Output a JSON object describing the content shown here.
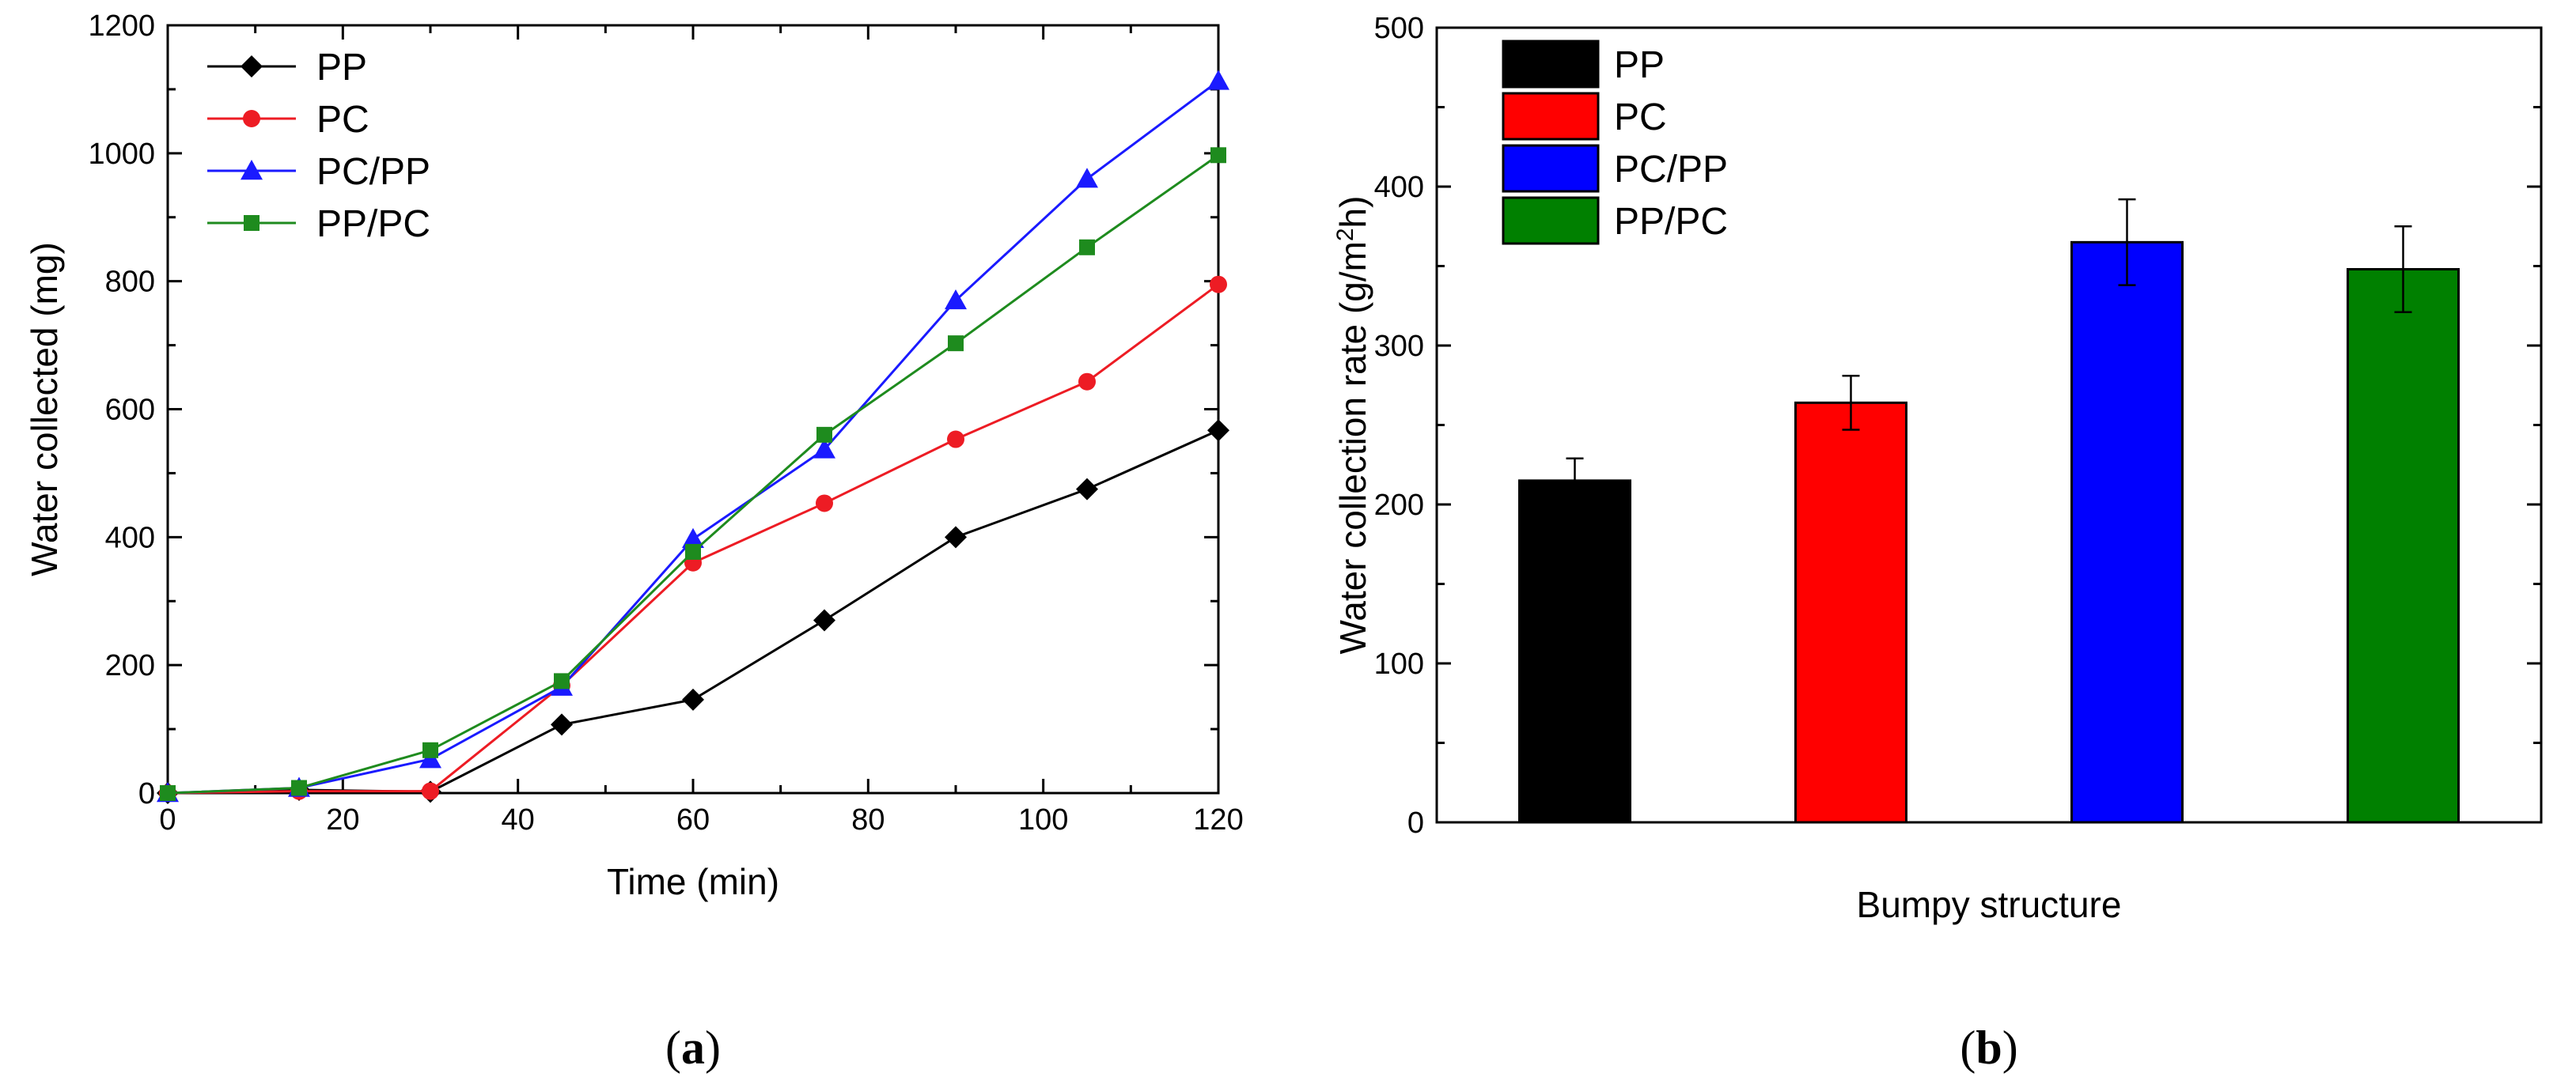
{
  "chart_data": [
    {
      "type": "line",
      "panel_label": "(a)",
      "panel_letter": "a",
      "xlabel": "Time (min)",
      "ylabel": "Water collected (mg)",
      "xlim": [
        0,
        120
      ],
      "ylim": [
        0,
        1200
      ],
      "xticks": [
        "0",
        "20",
        "40",
        "60",
        "80",
        "100",
        "120"
      ],
      "yticks": [
        "0",
        "200",
        "400",
        "600",
        "800",
        "1000",
        "1200"
      ],
      "x": [
        0,
        15,
        30,
        45,
        60,
        75,
        90,
        105,
        120
      ],
      "legend_position": "top-left",
      "series": [
        {
          "name": "PP",
          "color": "#000000",
          "marker": "diamond",
          "values": [
            0,
            5,
            2,
            107,
            146,
            270,
            400,
            475,
            567
          ]
        },
        {
          "name": "PC",
          "color": "#ed1c24",
          "marker": "circle",
          "values": [
            0,
            3,
            3,
            168,
            360,
            453,
            553,
            643,
            795
          ]
        },
        {
          "name": "PC/PP",
          "color": "#1a1aff",
          "marker": "triangle",
          "values": [
            0,
            8,
            53,
            166,
            397,
            537,
            770,
            960,
            1113
          ]
        },
        {
          "name": "PP/PC",
          "color": "#1e8b1e",
          "marker": "square",
          "values": [
            0,
            8,
            67,
            175,
            377,
            560,
            703,
            853,
            997
          ]
        }
      ]
    },
    {
      "type": "bar",
      "panel_label": "(b)",
      "panel_letter": "b",
      "xlabel": "Bumpy structure",
      "ylabel_parts": [
        "Water collection rate (g/m",
        "2",
        "h)"
      ],
      "ylim": [
        0,
        500
      ],
      "yticks": [
        "0",
        "100",
        "200",
        "300",
        "400",
        "500"
      ],
      "legend_position": "top-left",
      "categories": [
        "PP",
        "PC",
        "PC/PP",
        "PP/PC"
      ],
      "values": [
        215,
        264,
        365,
        348
      ],
      "errors": [
        14,
        17,
        27,
        27
      ],
      "colors": [
        "#000000",
        "#ff0000",
        "#0000ff",
        "#008000"
      ]
    }
  ]
}
